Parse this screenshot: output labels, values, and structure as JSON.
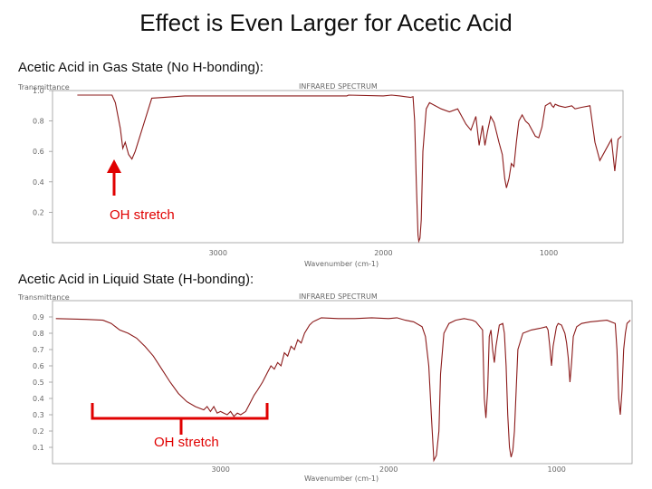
{
  "slide": {
    "title": "Effect is Even Larger for Acetic Acid",
    "gas_label": "Acetic Acid in Gas State (No H-bonding):",
    "liquid_label": "Acetic Acid in Liquid State (H-bonding):"
  },
  "annotations": {
    "gas": "OH stretch",
    "liquid": "OH stretch",
    "arrow_color": "#e00000",
    "trace_color": "#8b1a1a"
  },
  "chart_data": [
    {
      "type": "line",
      "chart_title": "INFRARED SPECTRUM",
      "ylabel": "Transmittance",
      "xlabel": "Wavenumber (cm-1)",
      "xlim": [
        4000,
        550
      ],
      "ylim": [
        0.0,
        1.0
      ],
      "y_ticks": [
        "1.0",
        "0.8",
        "0.6",
        "0.4",
        "0.2"
      ],
      "x_ticks": [
        "3000",
        "2000",
        "1000"
      ],
      "x_tick_values": [
        3000,
        2000,
        1000
      ],
      "y_tick_values": [
        1.0,
        0.8,
        0.6,
        0.4,
        0.2
      ],
      "series": [
        {
          "x": [
            3850,
            3640,
            3620,
            3590,
            3575,
            3560,
            3540,
            3520,
            3500,
            3400,
            3200,
            3000,
            2800,
            2500,
            2300,
            2220,
            2210,
            2000,
            1950,
            1900,
            1835,
            1820,
            1810,
            1800,
            1790,
            1785,
            1778,
            1770,
            1760,
            1740,
            1720,
            1650,
            1600,
            1550,
            1500,
            1470,
            1440,
            1420,
            1400,
            1385,
            1370,
            1350,
            1330,
            1300,
            1280,
            1265,
            1255,
            1240,
            1225,
            1210,
            1195,
            1180,
            1160,
            1140,
            1120,
            1080,
            1060,
            1040,
            1020,
            990,
            980,
            970,
            960,
            940,
            900,
            860,
            840,
            800,
            750,
            720,
            690,
            660,
            620,
            600,
            580,
            560
          ],
          "y": [
            0.97,
            0.97,
            0.92,
            0.75,
            0.62,
            0.66,
            0.58,
            0.55,
            0.6,
            0.95,
            0.965,
            0.965,
            0.965,
            0.965,
            0.965,
            0.965,
            0.97,
            0.965,
            0.97,
            0.965,
            0.955,
            0.96,
            0.8,
            0.4,
            0.05,
            0.01,
            0.03,
            0.15,
            0.6,
            0.88,
            0.92,
            0.88,
            0.86,
            0.88,
            0.78,
            0.74,
            0.83,
            0.64,
            0.77,
            0.64,
            0.73,
            0.83,
            0.79,
            0.66,
            0.58,
            0.42,
            0.36,
            0.42,
            0.52,
            0.5,
            0.66,
            0.8,
            0.84,
            0.8,
            0.78,
            0.7,
            0.69,
            0.76,
            0.9,
            0.92,
            0.9,
            0.89,
            0.91,
            0.9,
            0.89,
            0.9,
            0.88,
            0.89,
            0.9,
            0.66,
            0.54,
            0.6,
            0.68,
            0.47,
            0.68,
            0.7
          ]
        }
      ]
    },
    {
      "type": "line",
      "chart_title": "INFRARED SPECTRUM",
      "ylabel": "Transmittance",
      "xlabel": "Wavenumber (cm-1)",
      "xlim": [
        4000,
        550
      ],
      "ylim": [
        0.0,
        1.0
      ],
      "y_ticks": [
        "0.9",
        "0.8",
        "0.7",
        "0.6",
        "0.5",
        "0.4",
        "0.3",
        "0.2",
        "0.1"
      ],
      "x_ticks": [
        "3000",
        "2000",
        "1000"
      ],
      "x_tick_values": [
        3000,
        2000,
        1000
      ],
      "y_tick_values": [
        0.9,
        0.8,
        0.7,
        0.6,
        0.5,
        0.4,
        0.3,
        0.2,
        0.1
      ],
      "series": [
        {
          "x": [
            3980,
            3800,
            3700,
            3650,
            3600,
            3550,
            3500,
            3450,
            3400,
            3350,
            3300,
            3250,
            3200,
            3150,
            3100,
            3080,
            3060,
            3040,
            3020,
            3000,
            2980,
            2960,
            2940,
            2920,
            2900,
            2880,
            2850,
            2820,
            2800,
            2780,
            2750,
            2720,
            2700,
            2680,
            2660,
            2640,
            2620,
            2600,
            2580,
            2560,
            2540,
            2520,
            2500,
            2470,
            2450,
            2430,
            2400,
            2300,
            2200,
            2100,
            2000,
            1950,
            1900,
            1850,
            1800,
            1780,
            1760,
            1745,
            1730,
            1715,
            1700,
            1690,
            1670,
            1640,
            1600,
            1550,
            1500,
            1480,
            1440,
            1430,
            1420,
            1410,
            1400,
            1390,
            1380,
            1370,
            1360,
            1340,
            1320,
            1310,
            1300,
            1290,
            1280,
            1270,
            1260,
            1250,
            1240,
            1230,
            1200,
            1150,
            1100,
            1060,
            1050,
            1040,
            1030,
            1020,
            1000,
            990,
            970,
            950,
            940,
            930,
            920,
            910,
            900,
            880,
            850,
            800,
            700,
            650,
            640,
            630,
            620,
            610,
            600,
            590,
            580,
            560
          ],
          "y": [
            0.89,
            0.885,
            0.88,
            0.86,
            0.82,
            0.8,
            0.77,
            0.72,
            0.66,
            0.58,
            0.5,
            0.43,
            0.38,
            0.35,
            0.33,
            0.35,
            0.32,
            0.35,
            0.31,
            0.32,
            0.31,
            0.3,
            0.32,
            0.29,
            0.31,
            0.3,
            0.32,
            0.38,
            0.42,
            0.45,
            0.5,
            0.56,
            0.6,
            0.58,
            0.62,
            0.6,
            0.68,
            0.66,
            0.72,
            0.7,
            0.76,
            0.74,
            0.8,
            0.85,
            0.87,
            0.88,
            0.895,
            0.89,
            0.89,
            0.895,
            0.89,
            0.895,
            0.88,
            0.87,
            0.84,
            0.78,
            0.6,
            0.3,
            0.02,
            0.05,
            0.2,
            0.55,
            0.8,
            0.86,
            0.88,
            0.89,
            0.88,
            0.87,
            0.82,
            0.4,
            0.28,
            0.45,
            0.78,
            0.82,
            0.7,
            0.62,
            0.72,
            0.85,
            0.86,
            0.8,
            0.6,
            0.3,
            0.1,
            0.04,
            0.08,
            0.2,
            0.45,
            0.7,
            0.8,
            0.82,
            0.83,
            0.84,
            0.82,
            0.72,
            0.6,
            0.72,
            0.84,
            0.86,
            0.85,
            0.8,
            0.74,
            0.65,
            0.5,
            0.62,
            0.78,
            0.84,
            0.86,
            0.87,
            0.88,
            0.86,
            0.7,
            0.4,
            0.3,
            0.45,
            0.7,
            0.8,
            0.86,
            0.88
          ]
        }
      ]
    }
  ]
}
